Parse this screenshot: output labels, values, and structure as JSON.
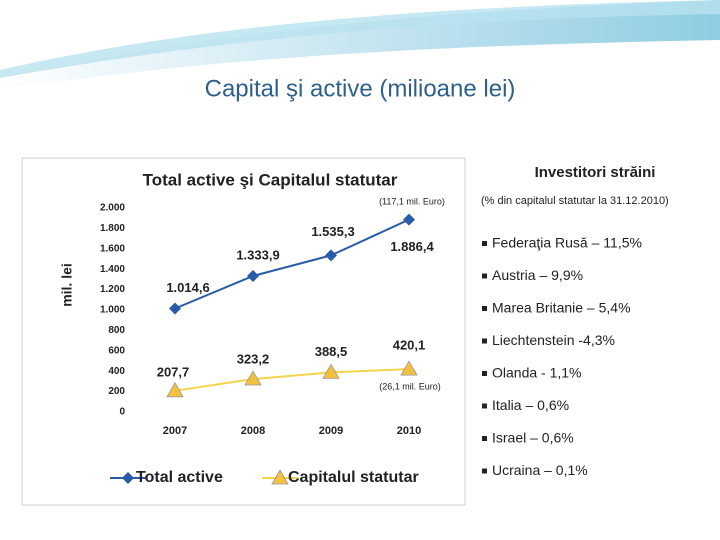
{
  "slide_title": "Capital şi active (milioane lei)",
  "chart_data": {
    "type": "line",
    "title": "Total active şi Capitalul statutar",
    "y_label": "mil. lei",
    "categories": [
      "2007",
      "2008",
      "2009",
      "2010"
    ],
    "series": [
      {
        "name": "Total active",
        "color": "#2a5ba8",
        "values": [
          1014.6,
          1333.9,
          1535.3,
          1886.4
        ],
        "value_labels": [
          "1.014,6",
          "1.333,9",
          "1.535,3",
          "1.886,4"
        ]
      },
      {
        "name": "Capitalul statutar",
        "color": "#f5d44a",
        "values": [
          207.7,
          323.2,
          388.5,
          420.1
        ],
        "value_labels": [
          "207,7",
          "323,2",
          "388,5",
          "420,1"
        ]
      }
    ],
    "annotations": [
      "(117,1 mil. Euro)",
      "(26,1 mil. Euro)"
    ],
    "ylim": [
      0,
      2000
    ],
    "yticks": [
      0,
      200,
      400,
      600,
      800,
      {
        "value": 1000,
        "label": "1.000"
      },
      {
        "value": 1200,
        "label": "1.200"
      },
      {
        "value": 1400,
        "label": "1.400"
      },
      {
        "value": 1600,
        "label": "1.600"
      },
      {
        "value": 1800,
        "label": "1.800"
      },
      {
        "value": 2000,
        "label": "2.000"
      }
    ],
    "legend": "bottom"
  },
  "investors": {
    "title": "Investitori străini",
    "subtitle": "(% din capitalul statutar la 31.12.2010)",
    "items": [
      "Federaţia Rusă – 11,5%",
      "Austria – 9,9%",
      "Marea Britanie – 5,4%",
      "Liechtenstein -4,3%",
      "Olanda - 1,1%",
      "Italia – 0,6%",
      "Israel – 0,6%",
      "Ucraina – 0,1%"
    ]
  }
}
